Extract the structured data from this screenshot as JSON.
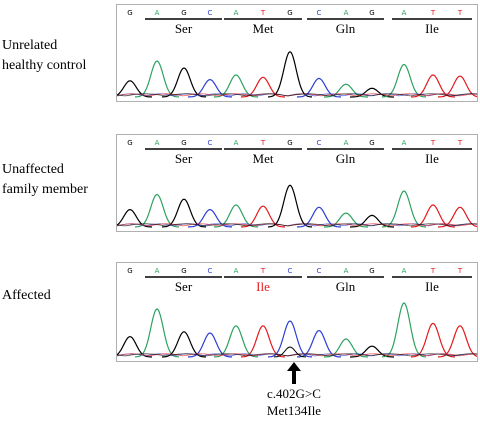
{
  "panels": [
    {
      "label_line1": "Unrelated",
      "label_line2": "healthy control",
      "bases": [
        "G",
        "A",
        "G",
        "C",
        "A",
        "T",
        "G",
        "C",
        "A",
        "G",
        "A",
        "T",
        "T"
      ],
      "codons": [
        {
          "aa": "Ser",
          "color": "#000000"
        },
        {
          "aa": "Met",
          "color": "#000000"
        },
        {
          "aa": "Gln",
          "color": "#000000"
        },
        {
          "aa": "Ile",
          "color": "#000000"
        }
      ]
    },
    {
      "label_line1": "Unaffected",
      "label_line2": "family member",
      "bases": [
        "G",
        "A",
        "G",
        "C",
        "A",
        "T",
        "G",
        "C",
        "A",
        "G",
        "A",
        "T",
        "T"
      ],
      "codons": [
        {
          "aa": "Ser",
          "color": "#000000"
        },
        {
          "aa": "Met",
          "color": "#000000"
        },
        {
          "aa": "Gln",
          "color": "#000000"
        },
        {
          "aa": "Ile",
          "color": "#000000"
        }
      ]
    },
    {
      "label_line1": "Affected",
      "label_line2": "",
      "bases": [
        "G",
        "A",
        "G",
        "C",
        "A",
        "T",
        "C",
        "C",
        "A",
        "G",
        "A",
        "T",
        "T"
      ],
      "codons": [
        {
          "aa": "Ser",
          "color": "#000000"
        },
        {
          "aa": "Ile",
          "color": "#e41a1c"
        },
        {
          "aa": "Gln",
          "color": "#000000"
        },
        {
          "aa": "Ile",
          "color": "#000000"
        }
      ]
    }
  ],
  "mutation": {
    "line1": "c.402G>C",
    "line2": "Met134Ile"
  },
  "base_colors": {
    "A": "#2ca25f",
    "C": "#2b3fd6",
    "G": "#000000",
    "T": "#e41a1c"
  }
}
